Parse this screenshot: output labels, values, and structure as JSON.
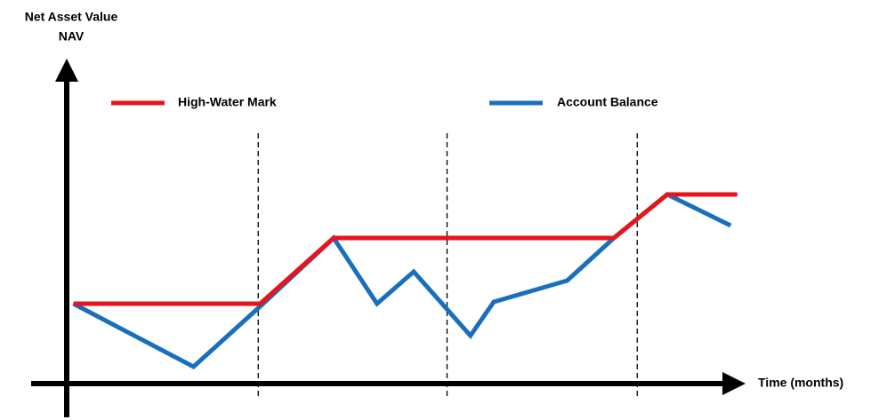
{
  "chart_data": {
    "type": "line",
    "y_label": [
      "Net Asset Value",
      "NAV"
    ],
    "x_label": "Time (months)",
    "xlim": [
      0,
      100
    ],
    "ylim": [
      0,
      90
    ],
    "vlines": [
      28.7,
      57,
      85.5
    ],
    "series": [
      {
        "name": "High-Water Mark",
        "color": "#e8141b",
        "x": [
          1,
          29,
          40,
          82,
          90,
          100.5
        ],
        "values": [
          22.5,
          22.5,
          41,
          41,
          53.25,
          53.25
        ]
      },
      {
        "name": "Account Balance",
        "color": "#1a6fbd",
        "x": [
          1,
          19,
          29,
          40,
          46.5,
          52,
          60.5,
          64,
          75,
          82,
          90,
          99.5
        ],
        "values": [
          22.5,
          4.75,
          21.75,
          41,
          22.5,
          31.5,
          13.5,
          23,
          29,
          41,
          53.25,
          44.5
        ]
      }
    ]
  }
}
